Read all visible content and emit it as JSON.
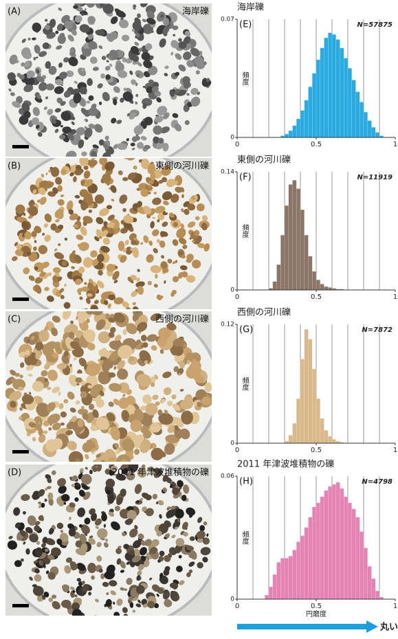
{
  "photos": [
    {
      "label": "(A)",
      "caption": "海岸礫"
    },
    {
      "label": "(B)",
      "caption": "東側の河川礫"
    },
    {
      "label": "(C)",
      "caption": "西側の河川礫"
    },
    {
      "label": "(D)",
      "caption": "2011 年津波堆積物の礫"
    }
  ],
  "arrow_label": "丸い",
  "chart_data": [
    {
      "type": "histogram",
      "panel": "(E)",
      "title": "海岸礫",
      "annotation": "N=57875",
      "ylabel": "頻度",
      "color": "#29abe2",
      "bins": [
        0,
        0.025,
        0.05,
        0.075,
        0.1,
        0.125,
        0.15,
        0.175,
        0.2,
        0.225,
        0.25,
        0.275,
        0.3,
        0.325,
        0.35,
        0.375,
        0.4,
        0.425,
        0.45,
        0.475,
        0.5,
        0.525,
        0.55,
        0.575,
        0.6,
        0.625,
        0.65,
        0.675,
        0.7,
        0.725,
        0.75,
        0.775,
        0.8,
        0.825,
        0.85,
        0.875,
        0.9,
        0.925,
        0.95,
        0.975,
        1
      ],
      "values": [
        0,
        0,
        0,
        0,
        0,
        0,
        0,
        0,
        0,
        0,
        0,
        0.001,
        0.002,
        0.004,
        0.007,
        0.011,
        0.016,
        0.022,
        0.03,
        0.038,
        0.046,
        0.053,
        0.059,
        0.062,
        0.061,
        0.058,
        0.053,
        0.047,
        0.041,
        0.034,
        0.027,
        0.021,
        0.015,
        0.01,
        0.006,
        0.003,
        0.001,
        0,
        0,
        0
      ],
      "xlim": [
        0,
        1
      ],
      "ylim": [
        0,
        0.07
      ],
      "xticks": [
        0,
        0.5,
        1
      ],
      "yticks": [
        0,
        0.07
      ],
      "xgrid": [
        0.1,
        0.2,
        0.3,
        0.4,
        0.5,
        0.6,
        0.7,
        0.8,
        0.9
      ]
    },
    {
      "type": "histogram",
      "panel": "(F)",
      "title": "東側の河川礫",
      "annotation": "N=11919",
      "ylabel": "頻度",
      "color": "#8b7566",
      "bins": [
        0,
        0.025,
        0.05,
        0.075,
        0.1,
        0.125,
        0.15,
        0.175,
        0.2,
        0.225,
        0.25,
        0.275,
        0.3,
        0.325,
        0.35,
        0.375,
        0.4,
        0.425,
        0.45,
        0.475,
        0.5,
        0.525,
        0.55,
        0.575,
        0.6,
        0.625,
        0.65,
        0.675,
        0.7,
        0.725,
        0.75,
        0.775,
        0.8,
        0.825,
        0.85,
        0.875,
        0.9,
        0.925,
        0.95,
        0.975,
        1
      ],
      "values": [
        0,
        0,
        0,
        0,
        0,
        0,
        0,
        0,
        0.002,
        0.01,
        0.03,
        0.065,
        0.1,
        0.125,
        0.13,
        0.12,
        0.095,
        0.065,
        0.04,
        0.022,
        0.012,
        0.007,
        0.004,
        0.003,
        0.002,
        0.001,
        0.001,
        0,
        0,
        0,
        0,
        0,
        0,
        0,
        0,
        0,
        0,
        0,
        0,
        0
      ],
      "xlim": [
        0,
        1
      ],
      "ylim": [
        0,
        0.14
      ],
      "xticks": [
        0,
        0.5,
        1
      ],
      "yticks": [
        0,
        0.14
      ],
      "xgrid": [
        0.1,
        0.2,
        0.3,
        0.4,
        0.5,
        0.6,
        0.7,
        0.8,
        0.9
      ]
    },
    {
      "type": "histogram",
      "panel": "(G)",
      "title": "西側の河川礫",
      "annotation": "N=7872",
      "ylabel": "頻度",
      "color": "#d9b98a",
      "bins": [
        0,
        0.025,
        0.05,
        0.075,
        0.1,
        0.125,
        0.15,
        0.175,
        0.2,
        0.225,
        0.25,
        0.275,
        0.3,
        0.325,
        0.35,
        0.375,
        0.4,
        0.425,
        0.45,
        0.475,
        0.5,
        0.525,
        0.55,
        0.575,
        0.6,
        0.625,
        0.65,
        0.675,
        0.7,
        0.725,
        0.75,
        0.775,
        0.8,
        0.825,
        0.85,
        0.875,
        0.9,
        0.925,
        0.95,
        0.975,
        1
      ],
      "values": [
        0,
        0,
        0,
        0,
        0,
        0,
        0,
        0,
        0,
        0,
        0,
        0,
        0.002,
        0.008,
        0.02,
        0.045,
        0.085,
        0.115,
        0.105,
        0.075,
        0.045,
        0.025,
        0.013,
        0.007,
        0.004,
        0.002,
        0.001,
        0,
        0,
        0,
        0,
        0,
        0,
        0,
        0,
        0,
        0,
        0,
        0,
        0
      ],
      "xlim": [
        0,
        1
      ],
      "ylim": [
        0,
        0.12
      ],
      "xticks": [
        0,
        0.5,
        1
      ],
      "yticks": [
        0,
        0.12
      ],
      "xgrid": [
        0.1,
        0.2,
        0.3,
        0.4,
        0.5,
        0.6,
        0.7,
        0.8,
        0.9
      ]
    },
    {
      "type": "histogram",
      "panel": "(H)",
      "title": "2011 年津波堆積物の礫",
      "annotation": "N=4798",
      "ylabel": "頻度",
      "xlabel": "円磨度",
      "color": "#e583b3",
      "bins": [
        0,
        0.025,
        0.05,
        0.075,
        0.1,
        0.125,
        0.15,
        0.175,
        0.2,
        0.225,
        0.25,
        0.275,
        0.3,
        0.325,
        0.35,
        0.375,
        0.4,
        0.425,
        0.45,
        0.475,
        0.5,
        0.525,
        0.55,
        0.575,
        0.6,
        0.625,
        0.65,
        0.675,
        0.7,
        0.725,
        0.75,
        0.775,
        0.8,
        0.825,
        0.85,
        0.875,
        0.9,
        0.925,
        0.95,
        0.975,
        1
      ],
      "values": [
        0,
        0,
        0,
        0,
        0,
        0,
        0,
        0.002,
        0.006,
        0.012,
        0.018,
        0.02,
        0.02,
        0.021,
        0.024,
        0.028,
        0.031,
        0.035,
        0.04,
        0.045,
        0.047,
        0.05,
        0.053,
        0.055,
        0.056,
        0.057,
        0.054,
        0.05,
        0.047,
        0.044,
        0.04,
        0.033,
        0.025,
        0.016,
        0.01,
        0.004,
        0.001,
        0,
        0,
        0
      ],
      "xlim": [
        0,
        1
      ],
      "ylim": [
        0,
        0.06
      ],
      "xticks": [
        0,
        0.5,
        1
      ],
      "yticks": [
        0,
        0.06
      ],
      "xgrid": [
        0.1,
        0.2,
        0.3,
        0.4,
        0.5,
        0.6,
        0.7,
        0.8,
        0.9
      ]
    }
  ]
}
